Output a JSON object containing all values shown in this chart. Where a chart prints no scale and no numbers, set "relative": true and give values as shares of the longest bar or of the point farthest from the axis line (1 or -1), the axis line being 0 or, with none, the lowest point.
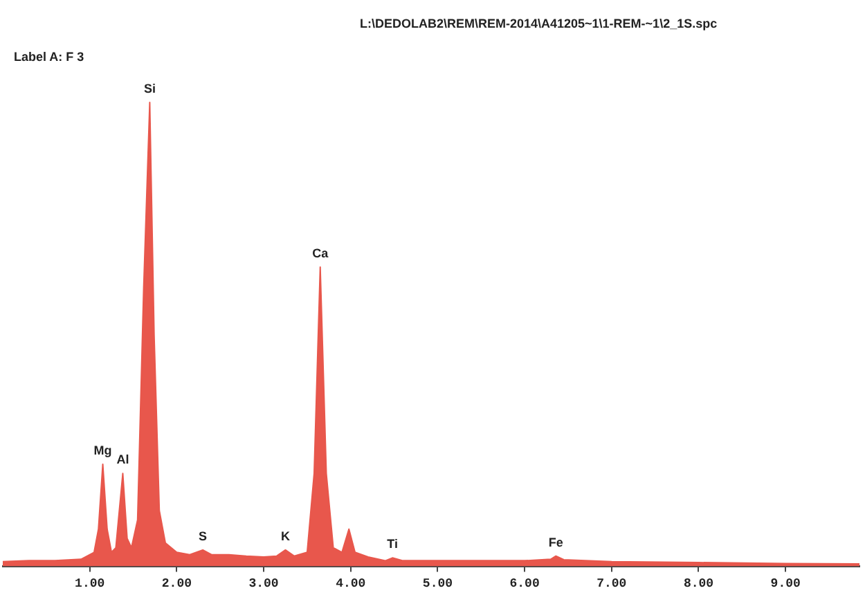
{
  "chart_data": {
    "type": "area",
    "title": "L:\\DEDOLAB2\\REM\\REM-2014\\A41205~1\\1-REM-~1\\2_1S.spc",
    "subtitle": "Label A: F 3",
    "relative": true,
    "x": [
      0.0,
      0.3,
      0.6,
      0.9,
      1.05,
      1.1,
      1.15,
      1.2,
      1.25,
      1.3,
      1.38,
      1.43,
      1.48,
      1.55,
      1.62,
      1.69,
      1.74,
      1.8,
      1.87,
      2.0,
      2.15,
      2.3,
      2.4,
      2.6,
      2.8,
      3.0,
      3.15,
      3.25,
      3.35,
      3.5,
      3.58,
      3.65,
      3.72,
      3.8,
      3.9,
      3.98,
      4.05,
      4.2,
      4.4,
      4.48,
      4.6,
      5.0,
      5.5,
      6.0,
      6.3,
      6.36,
      6.45,
      7.0,
      8.0,
      9.0,
      9.85
    ],
    "series": [
      {
        "color": "#e8574c",
        "values": [
          0.01,
          0.012,
          0.012,
          0.015,
          0.03,
          0.08,
          0.22,
          0.08,
          0.03,
          0.04,
          0.2,
          0.06,
          0.04,
          0.1,
          0.6,
          1.0,
          0.5,
          0.12,
          0.05,
          0.03,
          0.025,
          0.035,
          0.025,
          0.025,
          0.022,
          0.02,
          0.022,
          0.035,
          0.022,
          0.03,
          0.2,
          0.645,
          0.2,
          0.04,
          0.03,
          0.08,
          0.03,
          0.02,
          0.012,
          0.018,
          0.012,
          0.012,
          0.012,
          0.012,
          0.015,
          0.022,
          0.014,
          0.01,
          0.008,
          0.006,
          0.005
        ]
      }
    ],
    "xlim": [
      0,
      9.85
    ],
    "xticks": [
      {
        "value": 1,
        "label": "1.00"
      },
      {
        "value": 2,
        "label": "2.00"
      },
      {
        "value": 3,
        "label": "3.00"
      },
      {
        "value": 4,
        "label": "4.00"
      },
      {
        "value": 5,
        "label": "5.00"
      },
      {
        "value": 6,
        "label": "6.00"
      },
      {
        "value": 7,
        "label": "7.00"
      },
      {
        "value": 8,
        "label": "8.00"
      },
      {
        "value": 9,
        "label": "9.00"
      }
    ],
    "annotations": [
      {
        "text": "Mg",
        "x": 1.15,
        "y": 0.22
      },
      {
        "text": "Al",
        "x": 1.38,
        "y": 0.2
      },
      {
        "text": "Si",
        "x": 1.69,
        "y": 1.0
      },
      {
        "text": "S",
        "x": 2.3,
        "y": 0.035
      },
      {
        "text": "K",
        "x": 3.25,
        "y": 0.035
      },
      {
        "text": "Ca",
        "x": 3.65,
        "y": 0.645
      },
      {
        "text": "Ti",
        "x": 4.48,
        "y": 0.018
      },
      {
        "text": "Fe",
        "x": 6.36,
        "y": 0.022
      }
    ]
  }
}
